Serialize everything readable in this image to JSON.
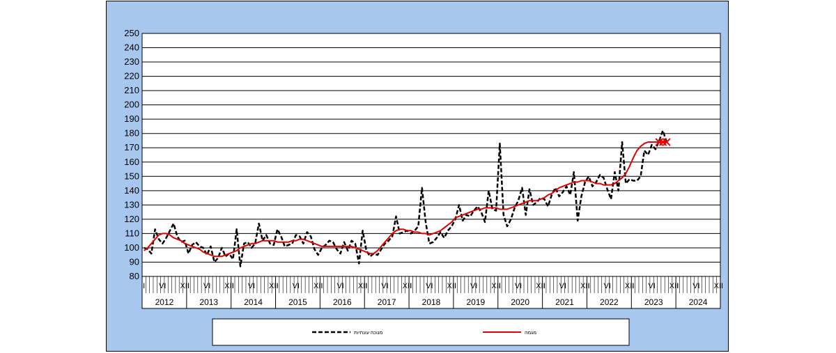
{
  "chart_data": {
    "type": "line",
    "title": "",
    "xlabel": "",
    "ylabel": "",
    "ylim": [
      80,
      250
    ],
    "yticks": [
      80,
      90,
      100,
      110,
      120,
      130,
      140,
      150,
      160,
      170,
      180,
      190,
      200,
      210,
      220,
      230,
      240,
      250
    ],
    "grid": true,
    "legend_position": "bottom",
    "start": "2012-01",
    "years": [
      "2012",
      "2013",
      "2014",
      "2015",
      "2016",
      "2017",
      "2018",
      "2019",
      "2020",
      "2021",
      "2022",
      "2023",
      "2024"
    ],
    "month_marks": [
      {
        "month": 1,
        "label": "I"
      },
      {
        "month": 6,
        "label": "VI"
      },
      {
        "month": 12,
        "label": "XII"
      }
    ],
    "colors": {
      "trend": "#e00000",
      "original": "#000000",
      "marker": "#e00000",
      "background": "#a7c7ef"
    },
    "series": [
      {
        "name": "מנוכה עונתיות",
        "style": "dashed",
        "values": [
          100,
          99,
          96,
          113,
          106,
          103,
          107,
          112,
          117,
          108,
          104,
          105,
          96,
          102,
          104,
          101,
          100,
          95,
          101,
          90,
          93,
          100,
          94,
          96,
          92,
          113,
          87,
          103,
          104,
          100,
          103,
          117,
          105,
          109,
          103,
          102,
          113,
          108,
          101,
          102,
          103,
          109,
          108,
          103,
          111,
          108,
          99,
          95,
          100,
          102,
          105,
          104,
          99,
          96,
          104,
          98,
          105,
          103,
          89,
          112,
          98,
          94,
          96,
          95,
          99,
          103,
          105,
          108,
          122,
          110,
          111,
          112,
          110,
          112,
          115,
          142,
          118,
          103,
          104,
          107,
          111,
          107,
          112,
          115,
          120,
          130,
          119,
          123,
          122,
          126,
          129,
          125,
          118,
          140,
          127,
          126,
          173,
          123,
          115,
          120,
          128,
          133,
          142,
          123,
          141,
          130,
          132,
          135,
          134,
          129,
          137,
          142,
          136,
          139,
          143,
          137,
          153,
          119,
          136,
          146,
          150,
          143,
          146,
          151,
          149,
          141,
          134,
          153,
          140,
          174,
          145,
          148,
          147,
          147,
          150,
          168,
          165,
          172,
          169,
          175,
          182,
          174
        ]
      },
      {
        "name": "מגמה",
        "style": "solid",
        "values": [
          98,
          100,
          103,
          106,
          109,
          110,
          110,
          109,
          107,
          106,
          105,
          103,
          102,
          101,
          100,
          99,
          97,
          96,
          95,
          94,
          94,
          94,
          95,
          96,
          97,
          98,
          100,
          101,
          102,
          103,
          103,
          104,
          105,
          105,
          105,
          105,
          104,
          104,
          104,
          104,
          105,
          105,
          106,
          106,
          105,
          104,
          103,
          102,
          101,
          101,
          101,
          101,
          101,
          101,
          101,
          101,
          101,
          100,
          99,
          98,
          97,
          96,
          96,
          98,
          101,
          104,
          107,
          110,
          112,
          113,
          113,
          112,
          112,
          111,
          111,
          110,
          110,
          109,
          110,
          111,
          112,
          114,
          116,
          118,
          121,
          122,
          123,
          124,
          125,
          126,
          127,
          127,
          128,
          128,
          128,
          128,
          127,
          127,
          127,
          128,
          129,
          130,
          131,
          132,
          133,
          133,
          133,
          134,
          135,
          137,
          138,
          140,
          142,
          143,
          144,
          145,
          146,
          146,
          147,
          147,
          147,
          146,
          145,
          145,
          144,
          144,
          144,
          145,
          147,
          149,
          152,
          157,
          163,
          168,
          171,
          173,
          174,
          174,
          174,
          174,
          174,
          174
        ]
      }
    ]
  }
}
